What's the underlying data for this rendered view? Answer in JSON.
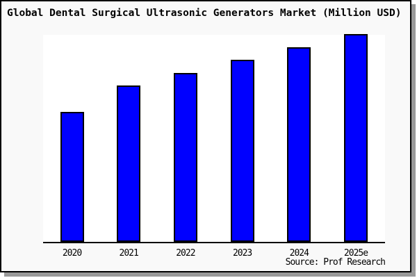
{
  "figure": {
    "background": "#f9f9f9",
    "border_color": "#000000",
    "shadow_color": "#999999",
    "plot_background": "#ffffff"
  },
  "title": "Global Dental Surgical Ultrasonic Generators Market (Million USD)",
  "source": "Source: Prof Research",
  "chart_data": {
    "type": "bar",
    "title": "Global Dental Surgical Ultrasonic Generators Market (Million USD)",
    "categories": [
      "2020",
      "2021",
      "2022",
      "2023",
      "2024",
      "2025e"
    ],
    "values": [
      62.5,
      75.3,
      81.3,
      87.6,
      93.6,
      100
    ],
    "values_note": "Chart has no y-axis scale or data labels; values are relative index estimated from bar heights with 2025e = 100",
    "xlabel": "",
    "ylabel": "",
    "ylim": [
      0,
      100.4
    ],
    "grid": false,
    "legend": null,
    "bar_color": "#0000ff",
    "bar_edge_color": "#000000",
    "source": "Source: Prof Research"
  }
}
